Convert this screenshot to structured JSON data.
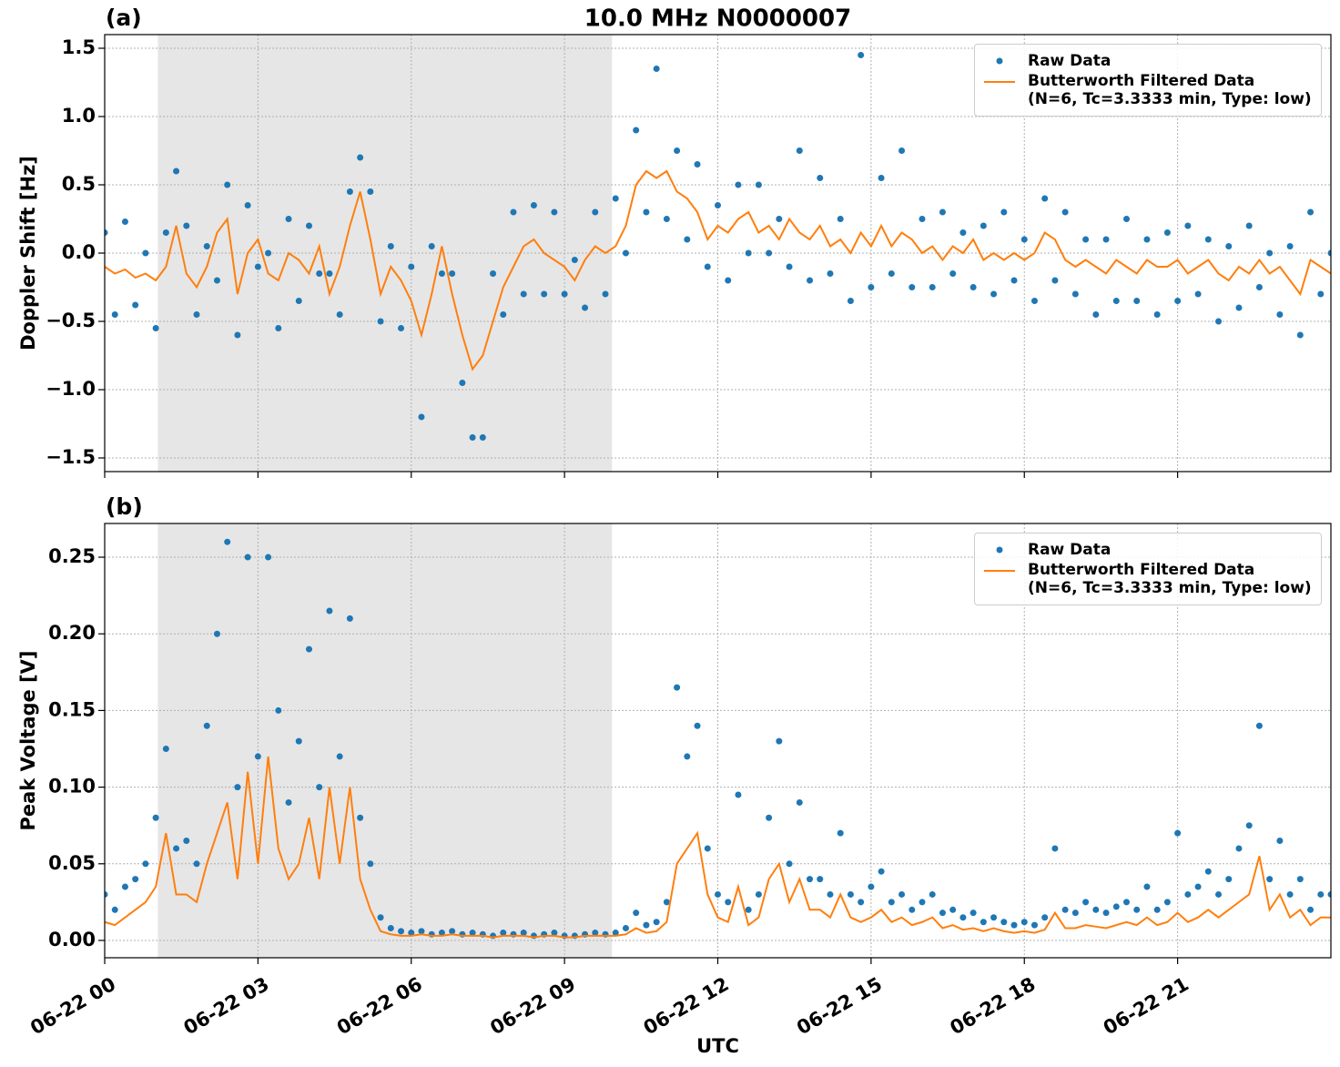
{
  "chart_data": [
    {
      "type": "scatter",
      "title": "10.0 MHz N0000007",
      "panel_label": "(a)",
      "ylabel": "Doppler Shift [Hz]",
      "xlim": [
        0,
        24
      ],
      "xticks": [
        0,
        3,
        6,
        9,
        12,
        15,
        18,
        21
      ],
      "ylim": [
        -1.6,
        1.6
      ],
      "yticks": [
        {
          "value": -1.5,
          "label": "−1.5"
        },
        {
          "value": -1.0,
          "label": "−1.0"
        },
        {
          "value": -0.5,
          "label": "−0.5"
        },
        {
          "value": 0.0,
          "label": "0.0"
        },
        0.5,
        {
          "value": 1.0,
          "label": "1.0"
        },
        1.5
      ],
      "grid": true,
      "legend": "upper right",
      "shaded_span": [
        1.04,
        9.93
      ],
      "x": [
        0,
        0.2,
        0.4,
        0.6,
        0.8,
        1,
        1.2,
        1.4,
        1.6,
        1.8,
        2,
        2.2,
        2.4,
        2.6,
        2.8,
        3,
        3.2,
        3.4,
        3.6,
        3.8,
        4,
        4.2,
        4.4,
        4.6,
        4.8,
        5,
        5.2,
        5.4,
        5.6,
        5.8,
        6,
        6.2,
        6.4,
        6.6,
        6.8,
        7,
        7.2,
        7.4,
        7.6,
        7.8,
        8,
        8.2,
        8.4,
        8.6,
        8.8,
        9,
        9.2,
        9.4,
        9.6,
        9.8,
        10,
        10.2,
        10.4,
        10.6,
        10.8,
        11,
        11.2,
        11.4,
        11.6,
        11.8,
        12,
        12.2,
        12.4,
        12.6,
        12.8,
        13,
        13.2,
        13.4,
        13.6,
        13.8,
        14,
        14.2,
        14.4,
        14.6,
        14.8,
        15,
        15.2,
        15.4,
        15.6,
        15.8,
        16,
        16.2,
        16.4,
        16.6,
        16.8,
        17,
        17.2,
        17.4,
        17.6,
        17.8,
        18,
        18.2,
        18.4,
        18.6,
        18.8,
        19,
        19.2,
        19.4,
        19.6,
        19.8,
        20,
        20.2,
        20.4,
        20.6,
        20.8,
        21,
        21.2,
        21.4,
        21.6,
        21.8,
        22,
        22.2,
        22.4,
        22.6,
        22.8,
        23,
        23.2,
        23.4,
        23.6,
        23.8,
        24
      ],
      "series": [
        {
          "name": "Raw Data",
          "type": "scatter",
          "color": "#1f77b4",
          "values": [
            0.15,
            -0.45,
            0.23,
            -0.38,
            0.0,
            -0.55,
            0.15,
            0.6,
            0.2,
            -0.45,
            0.05,
            -0.2,
            0.5,
            -0.6,
            0.35,
            -0.1,
            0.0,
            -0.55,
            0.25,
            -0.35,
            0.2,
            -0.15,
            -0.15,
            -0.45,
            0.45,
            0.7,
            0.45,
            -0.5,
            0.05,
            -0.55,
            -0.1,
            -1.2,
            0.05,
            -0.15,
            -0.15,
            -0.95,
            -1.35,
            -1.35,
            -0.15,
            -0.45,
            0.3,
            -0.3,
            0.35,
            -0.3,
            0.3,
            -0.3,
            -0.05,
            -0.4,
            0.3,
            -0.3,
            0.4,
            0.0,
            0.9,
            0.3,
            1.35,
            0.25,
            0.75,
            0.1,
            0.65,
            -0.1,
            0.35,
            -0.2,
            0.5,
            0.0,
            0.5,
            0.0,
            0.25,
            -0.1,
            0.75,
            -0.2,
            0.55,
            -0.15,
            0.25,
            -0.35,
            1.45,
            -0.25,
            0.55,
            -0.15,
            0.75,
            -0.25,
            0.25,
            -0.25,
            0.3,
            -0.15,
            0.15,
            -0.25,
            0.2,
            -0.3,
            0.3,
            -0.2,
            0.1,
            -0.35,
            0.4,
            -0.2,
            0.3,
            -0.3,
            0.1,
            -0.45,
            0.1,
            -0.35,
            0.25,
            -0.35,
            0.1,
            -0.45,
            0.15,
            -0.35,
            0.2,
            -0.3,
            0.1,
            -0.5,
            0.05,
            -0.4,
            0.2,
            -0.25,
            0.0,
            -0.45,
            0.05,
            -0.6,
            0.3,
            -0.3,
            0.0
          ]
        },
        {
          "name": "Butterworth Filtered Data\n(N=6, Tc=3.3333 min, Type: low)",
          "type": "line",
          "color": "#ff7f0e",
          "values": [
            -0.1,
            -0.15,
            -0.12,
            -0.18,
            -0.15,
            -0.2,
            -0.1,
            0.2,
            -0.15,
            -0.25,
            -0.1,
            0.15,
            0.25,
            -0.3,
            0.0,
            0.1,
            -0.15,
            -0.2,
            0.0,
            -0.05,
            -0.15,
            0.05,
            -0.3,
            -0.1,
            0.2,
            0.45,
            0.1,
            -0.3,
            -0.1,
            -0.2,
            -0.35,
            -0.6,
            -0.3,
            0.05,
            -0.3,
            -0.6,
            -0.85,
            -0.75,
            -0.5,
            -0.25,
            -0.1,
            0.05,
            0.1,
            0.0,
            -0.05,
            -0.1,
            -0.2,
            -0.05,
            0.05,
            0.0,
            0.05,
            0.2,
            0.5,
            0.6,
            0.55,
            0.6,
            0.45,
            0.4,
            0.3,
            0.1,
            0.2,
            0.15,
            0.25,
            0.3,
            0.15,
            0.2,
            0.1,
            0.25,
            0.15,
            0.1,
            0.2,
            0.05,
            0.1,
            0.0,
            0.15,
            0.05,
            0.2,
            0.05,
            0.15,
            0.1,
            0.0,
            0.05,
            -0.05,
            0.05,
            0.0,
            0.1,
            -0.05,
            0.0,
            -0.05,
            0.0,
            -0.05,
            0.0,
            0.15,
            0.1,
            -0.05,
            -0.1,
            -0.05,
            -0.1,
            -0.15,
            -0.05,
            -0.1,
            -0.15,
            -0.05,
            -0.1,
            -0.1,
            -0.05,
            -0.15,
            -0.1,
            -0.05,
            -0.15,
            -0.2,
            -0.1,
            -0.15,
            -0.05,
            -0.15,
            -0.1,
            -0.2,
            -0.3,
            -0.05,
            -0.1,
            -0.15
          ]
        }
      ]
    },
    {
      "type": "scatter",
      "panel_label": "(b)",
      "ylabel": "Peak Voltage [V]",
      "xlabel": "UTC",
      "xlim": [
        0,
        24
      ],
      "xticks": [
        {
          "value": 0,
          "label": "06-22 00"
        },
        {
          "value": 3,
          "label": "06-22 03"
        },
        {
          "value": 6,
          "label": "06-22 06"
        },
        {
          "value": 9,
          "label": "06-22 09"
        },
        {
          "value": 12,
          "label": "06-22 12"
        },
        {
          "value": 15,
          "label": "06-22 15"
        },
        {
          "value": 18,
          "label": "06-22 18"
        },
        {
          "value": 21,
          "label": "06-22 21"
        }
      ],
      "ylim": [
        -0.0113,
        0.272
      ],
      "yticks": [
        {
          "value": 0,
          "label": "0.00"
        },
        0.05,
        {
          "value": 0.1,
          "label": "0.10"
        },
        0.15,
        {
          "value": 0.2,
          "label": "0.20"
        },
        0.25
      ],
      "grid": true,
      "legend": "upper right",
      "shaded_span": [
        1.04,
        9.93
      ],
      "x": [
        0,
        0.2,
        0.4,
        0.6,
        0.8,
        1,
        1.2,
        1.4,
        1.6,
        1.8,
        2,
        2.2,
        2.4,
        2.6,
        2.8,
        3,
        3.2,
        3.4,
        3.6,
        3.8,
        4,
        4.2,
        4.4,
        4.6,
        4.8,
        5,
        5.2,
        5.4,
        5.6,
        5.8,
        6,
        6.2,
        6.4,
        6.6,
        6.8,
        7,
        7.2,
        7.4,
        7.6,
        7.8,
        8,
        8.2,
        8.4,
        8.6,
        8.8,
        9,
        9.2,
        9.4,
        9.6,
        9.8,
        10,
        10.2,
        10.4,
        10.6,
        10.8,
        11,
        11.2,
        11.4,
        11.6,
        11.8,
        12,
        12.2,
        12.4,
        12.6,
        12.8,
        13,
        13.2,
        13.4,
        13.6,
        13.8,
        14,
        14.2,
        14.4,
        14.6,
        14.8,
        15,
        15.2,
        15.4,
        15.6,
        15.8,
        16,
        16.2,
        16.4,
        16.6,
        16.8,
        17,
        17.2,
        17.4,
        17.6,
        17.8,
        18,
        18.2,
        18.4,
        18.6,
        18.8,
        19,
        19.2,
        19.4,
        19.6,
        19.8,
        20,
        20.2,
        20.4,
        20.6,
        20.8,
        21,
        21.2,
        21.4,
        21.6,
        21.8,
        22,
        22.2,
        22.4,
        22.6,
        22.8,
        23,
        23.2,
        23.4,
        23.6,
        23.8,
        24
      ],
      "series": [
        {
          "name": "Raw Data",
          "type": "scatter",
          "color": "#1f77b4",
          "values": [
            0.03,
            0.02,
            0.035,
            0.04,
            0.05,
            0.08,
            0.125,
            0.06,
            0.065,
            0.05,
            0.14,
            0.2,
            0.26,
            0.1,
            0.25,
            0.12,
            0.25,
            0.15,
            0.09,
            0.13,
            0.19,
            0.1,
            0.215,
            0.12,
            0.21,
            0.08,
            0.05,
            0.015,
            0.008,
            0.006,
            0.005,
            0.006,
            0.004,
            0.005,
            0.006,
            0.004,
            0.005,
            0.004,
            0.003,
            0.005,
            0.004,
            0.005,
            0.003,
            0.004,
            0.005,
            0.003,
            0.003,
            0.004,
            0.005,
            0.004,
            0.005,
            0.008,
            0.018,
            0.01,
            0.012,
            0.025,
            0.165,
            0.12,
            0.14,
            0.06,
            0.03,
            0.025,
            0.095,
            0.02,
            0.03,
            0.08,
            0.13,
            0.05,
            0.09,
            0.04,
            0.04,
            0.03,
            0.07,
            0.03,
            0.025,
            0.035,
            0.045,
            0.025,
            0.03,
            0.02,
            0.025,
            0.03,
            0.018,
            0.02,
            0.015,
            0.018,
            0.012,
            0.015,
            0.012,
            0.01,
            0.012,
            0.01,
            0.015,
            0.06,
            0.02,
            0.018,
            0.025,
            0.02,
            0.018,
            0.022,
            0.025,
            0.02,
            0.035,
            0.02,
            0.025,
            0.07,
            0.03,
            0.035,
            0.045,
            0.03,
            0.04,
            0.06,
            0.075,
            0.14,
            0.04,
            0.065,
            0.03,
            0.04,
            0.02,
            0.03,
            0.03
          ]
        },
        {
          "name": "Butterworth Filtered Data\n(N=6, Tc=3.3333 min, Type: low)",
          "type": "line",
          "color": "#ff7f0e",
          "values": [
            0.012,
            0.01,
            0.015,
            0.02,
            0.025,
            0.035,
            0.07,
            0.03,
            0.03,
            0.025,
            0.05,
            0.07,
            0.09,
            0.04,
            0.11,
            0.05,
            0.12,
            0.06,
            0.04,
            0.05,
            0.08,
            0.04,
            0.1,
            0.05,
            0.1,
            0.04,
            0.02,
            0.006,
            0.004,
            0.003,
            0.003,
            0.004,
            0.003,
            0.003,
            0.004,
            0.003,
            0.003,
            0.003,
            0.002,
            0.003,
            0.003,
            0.003,
            0.002,
            0.003,
            0.003,
            0.002,
            0.002,
            0.003,
            0.003,
            0.003,
            0.003,
            0.004,
            0.008,
            0.005,
            0.006,
            0.012,
            0.05,
            0.06,
            0.07,
            0.03,
            0.015,
            0.012,
            0.035,
            0.01,
            0.015,
            0.04,
            0.05,
            0.025,
            0.04,
            0.02,
            0.02,
            0.015,
            0.03,
            0.015,
            0.012,
            0.015,
            0.02,
            0.012,
            0.015,
            0.01,
            0.012,
            0.015,
            0.008,
            0.01,
            0.007,
            0.008,
            0.006,
            0.008,
            0.006,
            0.005,
            0.006,
            0.005,
            0.007,
            0.018,
            0.008,
            0.008,
            0.01,
            0.009,
            0.008,
            0.01,
            0.012,
            0.01,
            0.015,
            0.01,
            0.012,
            0.018,
            0.012,
            0.015,
            0.02,
            0.015,
            0.02,
            0.025,
            0.03,
            0.055,
            0.02,
            0.03,
            0.015,
            0.02,
            0.01,
            0.015,
            0.015
          ]
        }
      ]
    }
  ]
}
